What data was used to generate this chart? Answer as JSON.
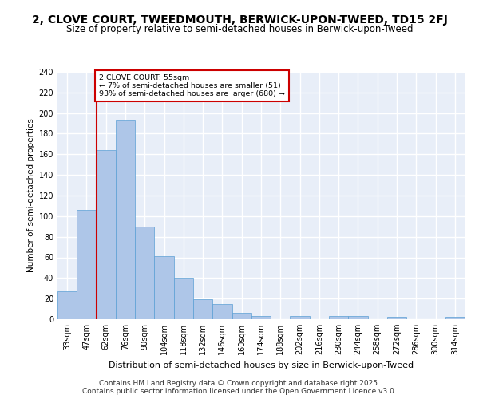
{
  "title": "2, CLOVE COURT, TWEEDMOUTH, BERWICK-UPON-TWEED, TD15 2FJ",
  "subtitle": "Size of property relative to semi-detached houses in Berwick-upon-Tweed",
  "xlabel": "Distribution of semi-detached houses by size in Berwick-upon-Tweed",
  "ylabel": "Number of semi-detached properties",
  "categories": [
    "33sqm",
    "47sqm",
    "62sqm",
    "76sqm",
    "90sqm",
    "104sqm",
    "118sqm",
    "132sqm",
    "146sqm",
    "160sqm",
    "174sqm",
    "188sqm",
    "202sqm",
    "216sqm",
    "230sqm",
    "244sqm",
    "258sqm",
    "272sqm",
    "286sqm",
    "300sqm",
    "314sqm"
  ],
  "values": [
    27,
    106,
    164,
    193,
    90,
    61,
    40,
    19,
    15,
    6,
    3,
    0,
    3,
    0,
    3,
    3,
    0,
    2,
    0,
    0,
    2
  ],
  "bar_color": "#aec6e8",
  "bar_edge_color": "#5a9fd4",
  "vline_x": 1.5,
  "vline_label": "2 CLOVE COURT: 55sqm",
  "annotation_line1": "← 7% of semi-detached houses are smaller (51)",
  "annotation_line2": "93% of semi-detached houses are larger (680) →",
  "annotation_box_color": "#cc0000",
  "ylim": [
    0,
    240
  ],
  "yticks": [
    0,
    20,
    40,
    60,
    80,
    100,
    120,
    140,
    160,
    180,
    200,
    220,
    240
  ],
  "background_color": "#e8eef8",
  "grid_color": "#ffffff",
  "footer": "Contains HM Land Registry data © Crown copyright and database right 2025.\nContains public sector information licensed under the Open Government Licence v3.0.",
  "title_fontsize": 10,
  "subtitle_fontsize": 8.5,
  "xlabel_fontsize": 8,
  "ylabel_fontsize": 7.5,
  "footer_fontsize": 6.5,
  "tick_fontsize": 7
}
